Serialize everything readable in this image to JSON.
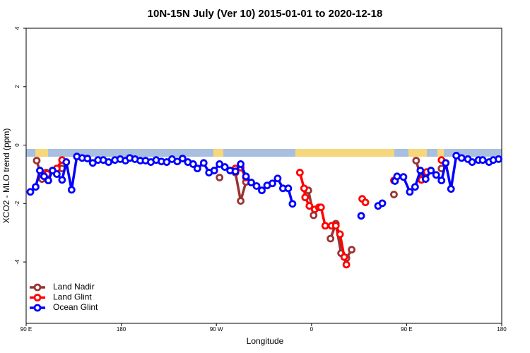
{
  "chart_data": {
    "type": "line",
    "title": "10N-15N July (Ver 10)   2015-01-01 to 2020-12-18",
    "xlabel": "Longitude",
    "ylabel": "XCO2 - MLO trend (ppm)",
    "xlim": [
      90,
      540
    ],
    "xticks": [
      {
        "value": 90,
        "label": "90 E"
      },
      180,
      {
        "value": 270,
        "label": "90 W"
      },
      {
        "value": 360,
        "label": "0"
      },
      {
        "value": 450,
        "label": "90 E"
      },
      {
        "value": 540,
        "label": "180"
      }
    ],
    "ylim": [
      -6.1,
      4
    ],
    "yticks": [
      4,
      2,
      0,
      -2,
      -4
    ],
    "legend": "lower left",
    "series": [
      {
        "name": "Land Nadir",
        "color": "#993333",
        "x": [
          100,
          105,
          109,
          124,
          null,
          273,
          null,
          288,
          293,
          298,
          null,
          357,
          362,
          null,
          378,
          383,
          388,
          393,
          398,
          null,
          438,
          null,
          459,
          464,
          469,
          null,
          483
        ],
        "values": [
          -0.53,
          -1.16,
          -0.94,
          -0.8,
          null,
          -1.11,
          null,
          -0.94,
          -1.91,
          -1.26,
          null,
          -1.55,
          -2.4,
          null,
          -3.2,
          -2.69,
          -3.7,
          -3.87,
          -3.58,
          null,
          -1.69,
          null,
          -0.53,
          -1.16,
          -0.94,
          null,
          -0.8
        ]
      },
      {
        "name": "Land Glint",
        "color": "#ff0000",
        "x": [
          105,
          110,
          119,
          124,
          null,
          288,
          293,
          298,
          null,
          349,
          353,
          354,
          358,
          363,
          367,
          369,
          373,
          379,
          383,
          387,
          391,
          393,
          null,
          408,
          411,
          null,
          438,
          null,
          464,
          469,
          null,
          483
        ],
        "values": [
          -0.99,
          -0.99,
          -0.8,
          -0.51,
          null,
          -0.8,
          -0.77,
          -1.11,
          null,
          -0.94,
          -1.48,
          -1.79,
          -2.08,
          -2.2,
          -2.13,
          -2.13,
          -2.76,
          -2.76,
          -2.76,
          -3.05,
          -3.83,
          -4.09,
          null,
          -1.84,
          -1.96,
          null,
          -1.21,
          null,
          -1.19,
          -0.92,
          null,
          -0.51
        ]
      },
      {
        "name": "Ocean Glint",
        "color": "#0000ff",
        "x": [
          94,
          99,
          103,
          107,
          111,
          115,
          119,
          124,
          128,
          133,
          138,
          143,
          148,
          153,
          158,
          163,
          168,
          174,
          179,
          184,
          188,
          193,
          198,
          203,
          208,
          213,
          218,
          223,
          228,
          233,
          238,
          243,
          248,
          252,
          258,
          263,
          268,
          273,
          278,
          283,
          288,
          293,
          298,
          303,
          308,
          313,
          318,
          323,
          328,
          333,
          338,
          342,
          null,
          407,
          null,
          423,
          427,
          null,
          439,
          441,
          447,
          453,
          458,
          463,
          468,
          473,
          478,
          483,
          487,
          492,
          497,
          502,
          508,
          512,
          518,
          522,
          528,
          532,
          537
        ],
        "values": [
          -1.6,
          -1.43,
          -0.87,
          -1.07,
          -1.21,
          -0.87,
          -0.99,
          -1.19,
          -0.58,
          -1.53,
          -0.39,
          -0.44,
          -0.46,
          -0.61,
          -0.51,
          -0.51,
          -0.58,
          -0.51,
          -0.48,
          -0.53,
          -0.44,
          -0.48,
          -0.53,
          -0.53,
          -0.58,
          -0.51,
          -0.56,
          -0.58,
          -0.48,
          -0.56,
          -0.46,
          -0.58,
          -0.65,
          -0.8,
          -0.61,
          -0.94,
          -0.87,
          -0.65,
          -0.75,
          -0.87,
          -0.9,
          -0.65,
          -1.07,
          -1.28,
          -1.4,
          -1.55,
          -1.38,
          -1.31,
          -1.14,
          -1.48,
          -1.48,
          -2.01,
          null,
          -2.42,
          null,
          -2.08,
          -1.99,
          null,
          -1.23,
          -1.07,
          -1.09,
          -1.6,
          -1.43,
          -0.87,
          -1.16,
          -0.87,
          -1.02,
          -1.21,
          -0.61,
          -1.5,
          -0.36,
          -0.44,
          -0.48,
          -0.58,
          -0.51,
          -0.51,
          -0.58,
          -0.51,
          -0.48
        ]
      }
    ]
  }
}
